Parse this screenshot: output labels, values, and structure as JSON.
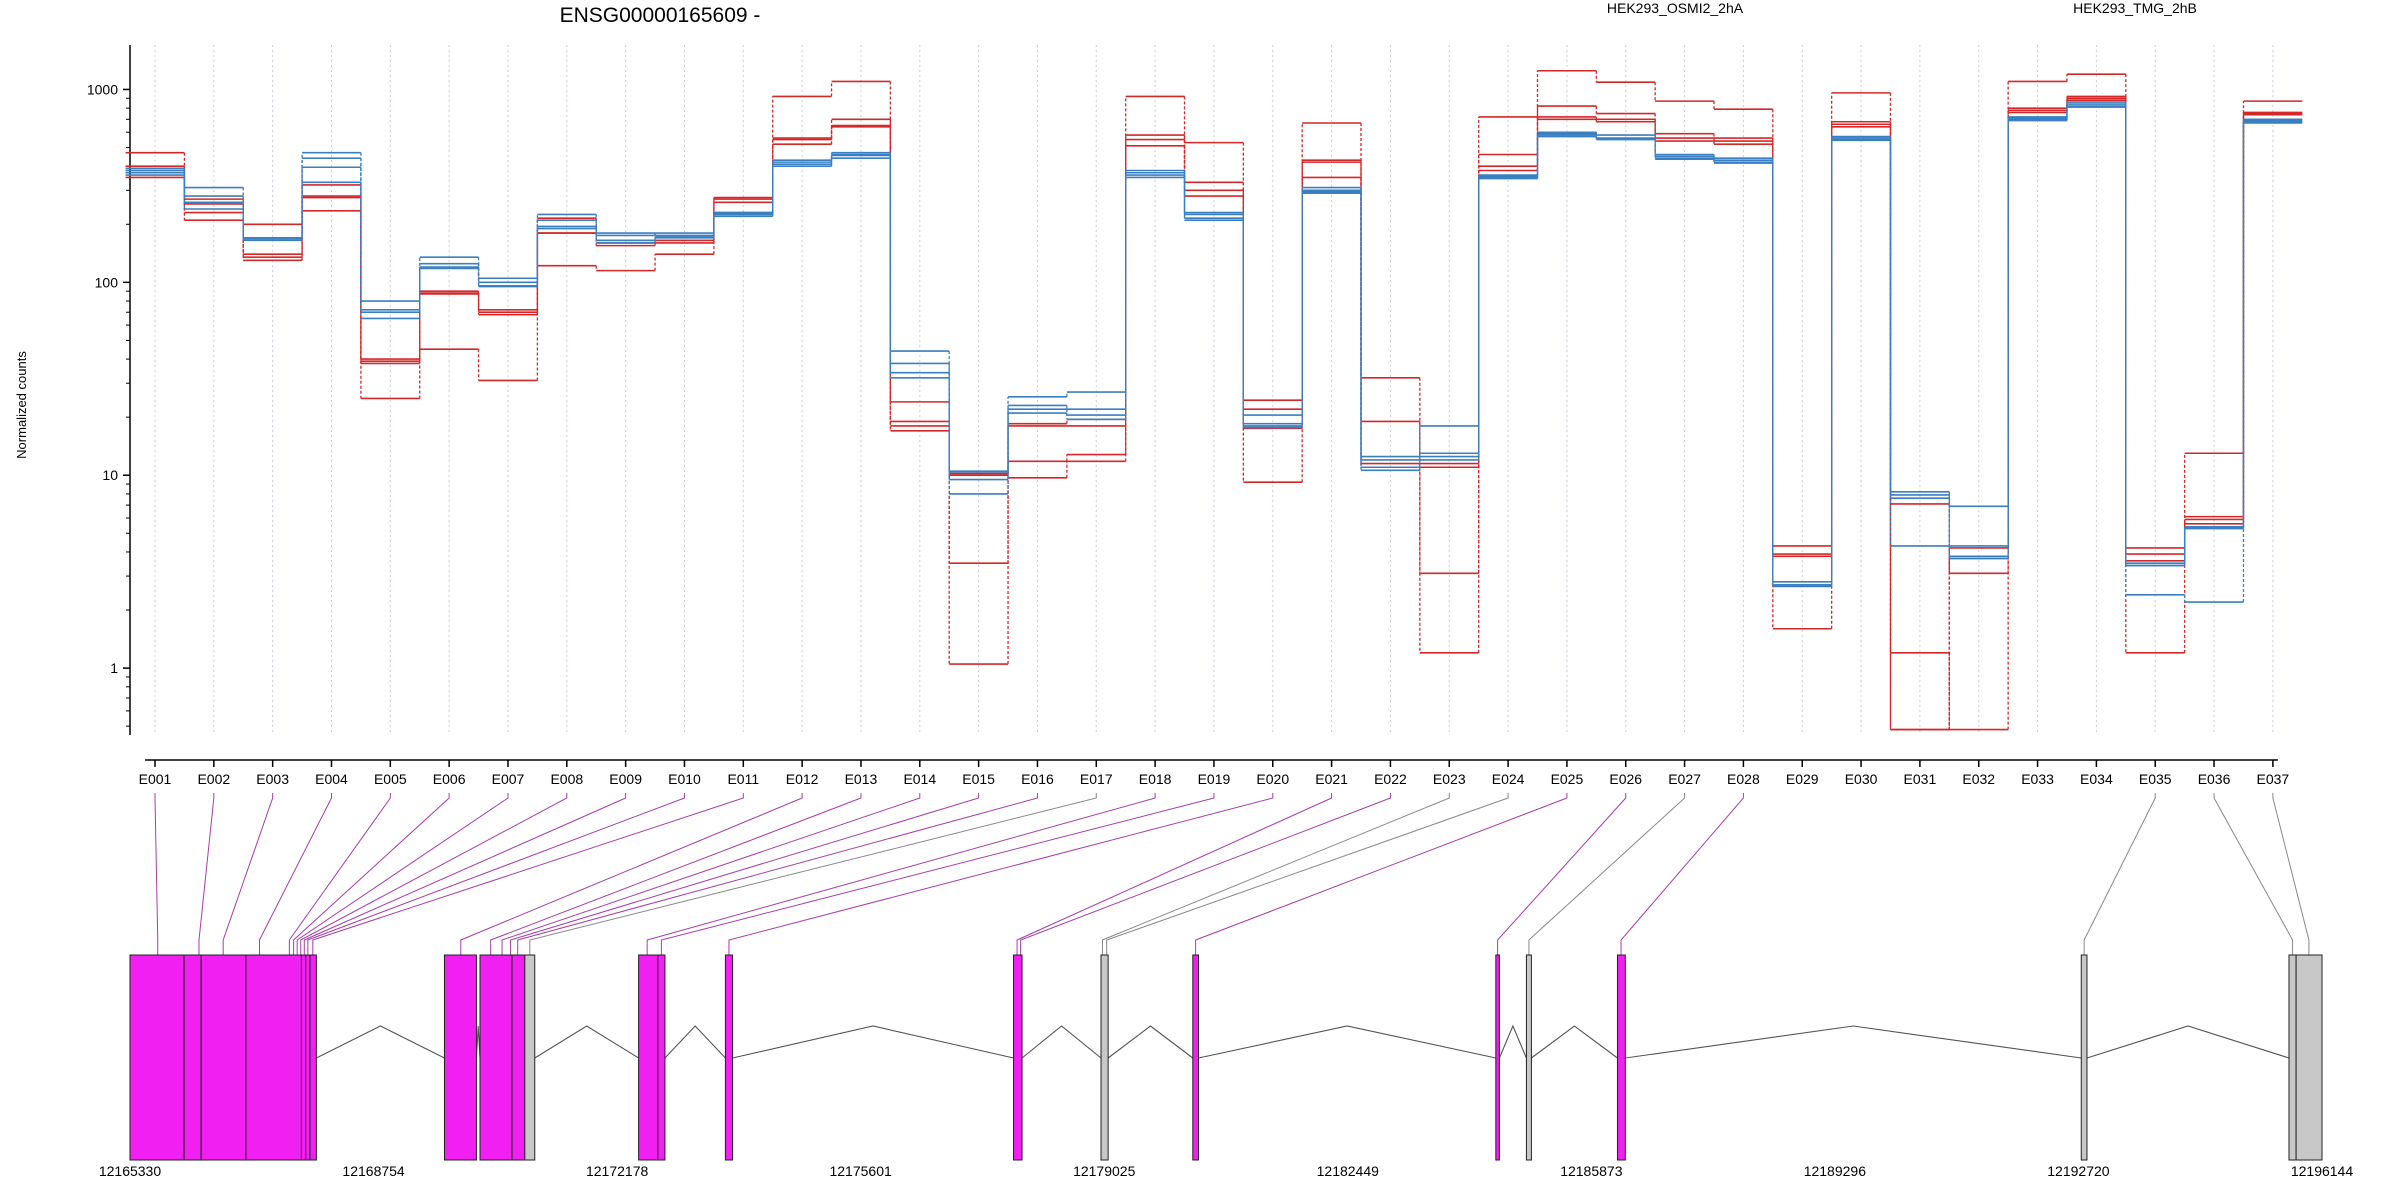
{
  "chart_data": {
    "type": "line",
    "title": "ENSG00000165609 -",
    "ylabel": "Normalized counts",
    "yscale": "log",
    "ylim": [
      0.45,
      1700
    ],
    "yticks": [
      1,
      10,
      100,
      1000
    ],
    "ytick_labels": [
      "1",
      "10",
      "100",
      "1000"
    ],
    "grid": "vertical dotted",
    "legend_placement": "top",
    "categories": [
      "E001",
      "E002",
      "E003",
      "E004",
      "E005",
      "E006",
      "E007",
      "E008",
      "E009",
      "E010",
      "E011",
      "E012",
      "E013",
      "E014",
      "E015",
      "E016",
      "E017",
      "E018",
      "E019",
      "E020",
      "E021",
      "E022",
      "E023",
      "E024",
      "E025",
      "E026",
      "E027",
      "E028",
      "E029",
      "E030",
      "E031",
      "E032",
      "E033",
      "E034",
      "E035",
      "E036",
      "E037"
    ],
    "groups": [
      {
        "name": "HEK293_OSMI2_2hA",
        "color": "#d62728"
      },
      {
        "name": "HEK293_TMG_2hB",
        "color": "#3a7fc1"
      }
    ],
    "series": [
      {
        "group": 0,
        "values": [
          470,
          210,
          130,
          235,
          25,
          45,
          31,
          122,
          115,
          140,
          230,
          920,
          1100,
          17,
          1.05,
          9.7,
          11.8,
          920,
          530,
          9.2,
          670,
          32,
          1.2,
          720,
          1250,
          1090,
          870,
          790,
          1.6,
          960,
          1.2,
          0.48,
          1100,
          1200,
          1.2,
          13,
          870
        ]
      },
      {
        "group": 0,
        "values": [
          400,
          255,
          135,
          275,
          39,
          88,
          68,
          180,
          155,
          160,
          270,
          520,
          640,
          18,
          3.5,
          11.8,
          12.8,
          510,
          280,
          17.5,
          350,
          19,
          3.1,
          460,
          820,
          750,
          590,
          560,
          3.8,
          640,
          7.1,
          3.1,
          800,
          920,
          3.6,
          5.6,
          760
        ]
      },
      {
        "group": 0,
        "values": [
          380,
          270,
          140,
          320,
          40,
          90,
          70,
          215,
          165,
          165,
          275,
          560,
          700,
          24,
          10.2,
          18.5,
          19.5,
          580,
          330,
          24.5,
          430,
          11.5,
          11.5,
          400,
          700,
          680,
          540,
          520,
          4.3,
          680,
          0.48,
          4.2,
          780,
          900,
          4.2,
          6.1,
          750
        ]
      },
      {
        "group": 0,
        "values": [
          350,
          230,
          200,
          280,
          38,
          87,
          72,
          180,
          160,
          165,
          260,
          550,
          650,
          19,
          10,
          18,
          18,
          550,
          300,
          22,
          420,
          11,
          11,
          380,
          720,
          700,
          560,
          540,
          3.9,
          660,
          0.48,
          3.7,
          760,
          880,
          3.9,
          5.9,
          740
        ]
      },
      {
        "group": 1,
        "values": [
          390,
          310,
          170,
          470,
          80,
          135,
          105,
          225,
          175,
          180,
          230,
          410,
          470,
          44,
          8,
          25.5,
          27,
          380,
          230,
          20.5,
          310,
          12.5,
          18,
          350,
          600,
          580,
          460,
          440,
          2.7,
          570,
          8.2,
          6.9,
          720,
          840,
          2.4,
          2.2,
          700
        ]
      },
      {
        "group": 1,
        "values": [
          370,
          280,
          170,
          440,
          72,
          125,
          100,
          210,
          180,
          175,
          225,
          430,
          460,
          38,
          10.5,
          23,
          22,
          370,
          225,
          18.5,
          300,
          12,
          13,
          355,
          590,
          560,
          450,
          430,
          2.8,
          560,
          7.9,
          3.7,
          700,
          820,
          3.4,
          5.3,
          690
        ]
      },
      {
        "group": 1,
        "values": [
          360,
          260,
          165,
          395,
          65,
          120,
          96,
          195,
          165,
          170,
          220,
          400,
          440,
          34,
          9.5,
          22,
          20.5,
          350,
          215,
          17.7,
          290,
          11,
          12.5,
          345,
          570,
          550,
          440,
          420,
          2.7,
          550,
          7.6,
          3.8,
          690,
          810,
          3.4,
          5.4,
          670
        ]
      },
      {
        "group": 1,
        "values": [
          380,
          240,
          168,
          330,
          70,
          118,
          95,
          190,
          160,
          172,
          228,
          420,
          455,
          32,
          10.4,
          21,
          19.5,
          360,
          210,
          18,
          295,
          10.6,
          12,
          360,
          580,
          555,
          435,
          415,
          2.65,
          545,
          4.3,
          4.3,
          710,
          860,
          3.5,
          5.3,
          680
        ]
      }
    ],
    "genomic_axis": {
      "start": 12165330,
      "end": 12196144,
      "tick_labels": [
        12165330,
        12168754,
        12172178,
        12175601,
        12179025,
        12182449,
        12185873,
        12189296,
        12192720,
        12196144
      ],
      "features": [
        {
          "start": 12165330,
          "end": 12166090,
          "color": "#f21ff2"
        },
        {
          "start": 12166090,
          "end": 12166330,
          "color": "#f21ff2"
        },
        {
          "start": 12166330,
          "end": 12166960,
          "color": "#f21ff2"
        },
        {
          "start": 12166960,
          "end": 12167740,
          "color": "#f21ff2"
        },
        {
          "start": 12167740,
          "end": 12167800,
          "color": "#f21ff2"
        },
        {
          "start": 12167800,
          "end": 12167860,
          "color": "#f21ff2"
        },
        {
          "start": 12167860,
          "end": 12167950,
          "color": "#f21ff2"
        },
        {
          "start": 12169750,
          "end": 12170200,
          "color": "#f21ff2"
        },
        {
          "start": 12170250,
          "end": 12170700,
          "color": "#f21ff2"
        },
        {
          "start": 12170700,
          "end": 12170880,
          "color": "#f21ff2"
        },
        {
          "start": 12170880,
          "end": 12171020,
          "color": "#c8c8c8"
        },
        {
          "start": 12172480,
          "end": 12172750,
          "color": "#f21ff2"
        },
        {
          "start": 12172750,
          "end": 12172850,
          "color": "#f21ff2"
        },
        {
          "start": 12173700,
          "end": 12173800,
          "color": "#f21ff2"
        },
        {
          "start": 12177750,
          "end": 12177870,
          "color": "#f21ff2"
        },
        {
          "start": 12178980,
          "end": 12179080,
          "color": "#c8c8c8"
        },
        {
          "start": 12180270,
          "end": 12180350,
          "color": "#f21ff2"
        },
        {
          "start": 12184530,
          "end": 12184580,
          "color": "#f21ff2"
        },
        {
          "start": 12184960,
          "end": 12185030,
          "color": "#c8c8c8"
        },
        {
          "start": 12186240,
          "end": 12186350,
          "color": "#f21ff2"
        },
        {
          "start": 12192760,
          "end": 12192840,
          "color": "#c8c8c8"
        },
        {
          "start": 12195680,
          "end": 12195780,
          "color": "#c8c8c8"
        },
        {
          "start": 12195780,
          "end": 12196144,
          "color": "#c8c8c8"
        }
      ],
      "exon_connectors": [
        {
          "exon": "E001",
          "pos": 12165720,
          "color": "#a83ca8"
        },
        {
          "exon": "E002",
          "pos": 12166300,
          "color": "#a83ca8"
        },
        {
          "exon": "E003",
          "pos": 12166640,
          "color": "#a83ca8"
        },
        {
          "exon": "E004",
          "pos": 12167150,
          "color": "#a83ca8"
        },
        {
          "exon": "E005",
          "pos": 12167570,
          "color": "#a83ca8"
        },
        {
          "exon": "E006",
          "pos": 12167630,
          "color": "#a83ca8"
        },
        {
          "exon": "E007",
          "pos": 12167680,
          "color": "#a83ca8"
        },
        {
          "exon": "E008",
          "pos": 12167730,
          "color": "#a83ca8"
        },
        {
          "exon": "E009",
          "pos": 12167780,
          "color": "#a83ca8"
        },
        {
          "exon": "E010",
          "pos": 12167830,
          "color": "#a83ca8"
        },
        {
          "exon": "E011",
          "pos": 12167900,
          "color": "#a83ca8"
        },
        {
          "exon": "E012",
          "pos": 12169980,
          "color": "#a83ca8"
        },
        {
          "exon": "E013",
          "pos": 12170400,
          "color": "#a83ca8"
        },
        {
          "exon": "E014",
          "pos": 12170560,
          "color": "#a83ca8"
        },
        {
          "exon": "E015",
          "pos": 12170680,
          "color": "#a83ca8"
        },
        {
          "exon": "E016",
          "pos": 12170780,
          "color": "#a83ca8"
        },
        {
          "exon": "E017",
          "pos": 12170950,
          "color": "#888888"
        },
        {
          "exon": "E018",
          "pos": 12172600,
          "color": "#a83ca8"
        },
        {
          "exon": "E019",
          "pos": 12172800,
          "color": "#a83ca8"
        },
        {
          "exon": "E020",
          "pos": 12173750,
          "color": "#a83ca8"
        },
        {
          "exon": "E021",
          "pos": 12177800,
          "color": "#a83ca8"
        },
        {
          "exon": "E022",
          "pos": 12177850,
          "color": "#a83ca8"
        },
        {
          "exon": "E023",
          "pos": 12179000,
          "color": "#888888"
        },
        {
          "exon": "E024",
          "pos": 12179060,
          "color": "#888888"
        },
        {
          "exon": "E025",
          "pos": 12180310,
          "color": "#a83ca8"
        },
        {
          "exon": "E026",
          "pos": 12184555,
          "color": "#a83ca8"
        },
        {
          "exon": "E027",
          "pos": 12184995,
          "color": "#888888"
        },
        {
          "exon": "E028",
          "pos": 12186290,
          "color": "#a83ca8"
        },
        {
          "exon": "E035",
          "pos": 12192800,
          "color": "#888888"
        },
        {
          "exon": "E036",
          "pos": 12195730,
          "color": "#888888"
        },
        {
          "exon": "E037",
          "pos": 12195960,
          "color": "#888888"
        }
      ],
      "introns": [
        [
          12167950,
          12169750
        ],
        [
          12170200,
          12170250
        ],
        [
          12171020,
          12172480
        ],
        [
          12172850,
          12173700
        ],
        [
          12173800,
          12177750
        ],
        [
          12177870,
          12178980
        ],
        [
          12179080,
          12180270
        ],
        [
          12180350,
          12184530
        ],
        [
          12184580,
          12184960
        ],
        [
          12185030,
          12186240
        ],
        [
          12186350,
          12192760
        ],
        [
          12192840,
          12195680
        ]
      ]
    }
  }
}
